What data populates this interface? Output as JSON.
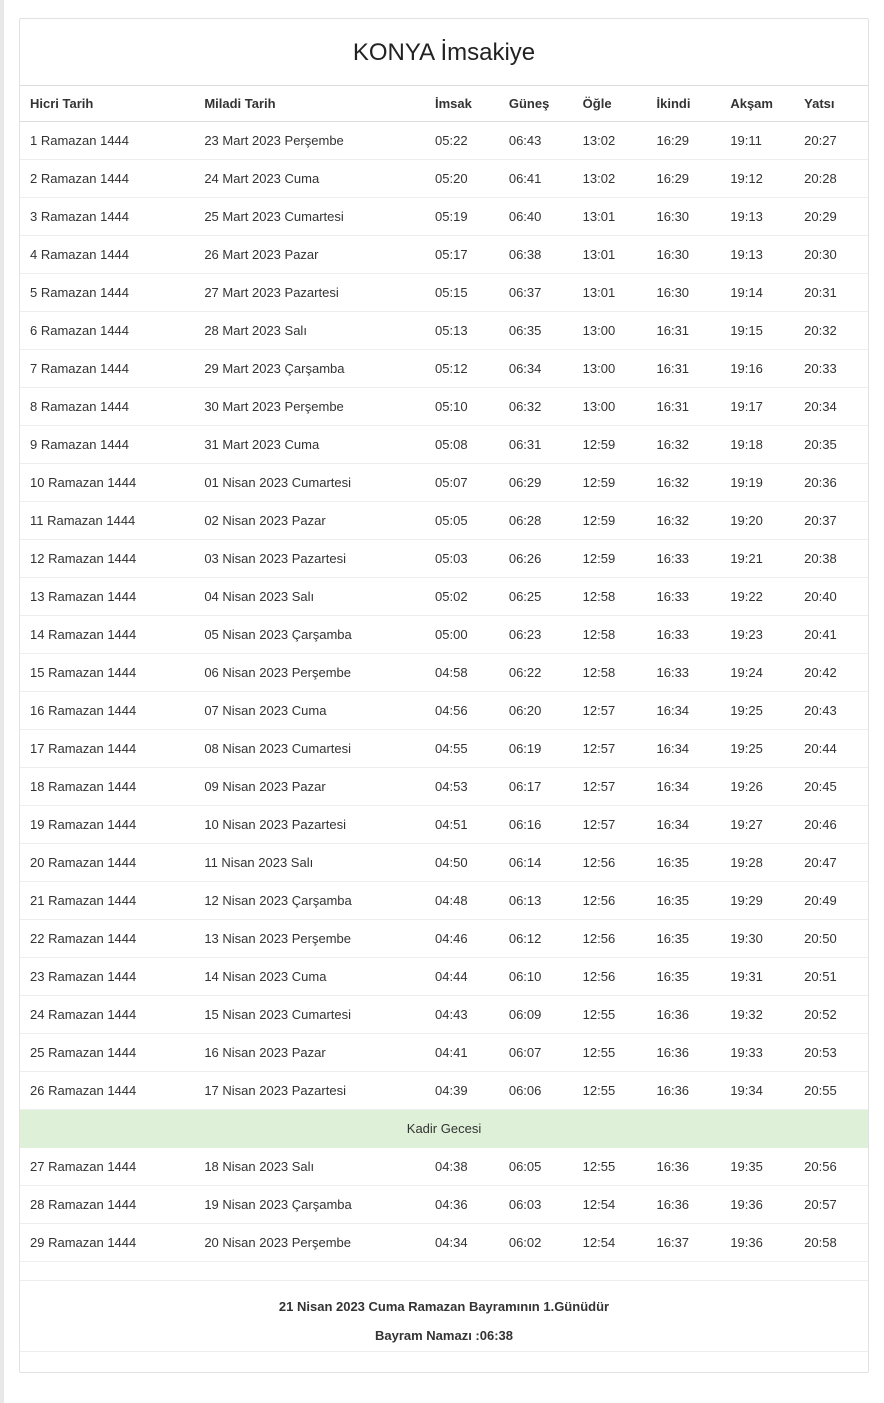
{
  "title": "KONYA İmsakiye",
  "columns": [
    "Hicri Tarih",
    "Miladi Tarih",
    "İmsak",
    "Güneş",
    "Öğle",
    "İkindi",
    "Akşam",
    "Yatsı"
  ],
  "special_row_label": "Kadir Gecesi",
  "special_row_after_index": 25,
  "special_row_bg": "#dff0d8",
  "footer": {
    "line1": "21 Nisan 2023 Cuma Ramazan Bayramının 1.Günüdür",
    "line2": "Bayram Namazı :06:38"
  },
  "rows": [
    {
      "hicri": "1 Ramazan 1444",
      "miladi": "23 Mart 2023 Perşembe",
      "imsak": "05:22",
      "gunes": "06:43",
      "ogle": "13:02",
      "ikindi": "16:29",
      "aksam": "19:11",
      "yatsi": "20:27"
    },
    {
      "hicri": "2 Ramazan 1444",
      "miladi": "24 Mart 2023 Cuma",
      "imsak": "05:20",
      "gunes": "06:41",
      "ogle": "13:02",
      "ikindi": "16:29",
      "aksam": "19:12",
      "yatsi": "20:28"
    },
    {
      "hicri": "3 Ramazan 1444",
      "miladi": "25 Mart 2023 Cumartesi",
      "imsak": "05:19",
      "gunes": "06:40",
      "ogle": "13:01",
      "ikindi": "16:30",
      "aksam": "19:13",
      "yatsi": "20:29"
    },
    {
      "hicri": "4 Ramazan 1444",
      "miladi": "26 Mart 2023 Pazar",
      "imsak": "05:17",
      "gunes": "06:38",
      "ogle": "13:01",
      "ikindi": "16:30",
      "aksam": "19:13",
      "yatsi": "20:30"
    },
    {
      "hicri": "5 Ramazan 1444",
      "miladi": "27 Mart 2023 Pazartesi",
      "imsak": "05:15",
      "gunes": "06:37",
      "ogle": "13:01",
      "ikindi": "16:30",
      "aksam": "19:14",
      "yatsi": "20:31"
    },
    {
      "hicri": "6 Ramazan 1444",
      "miladi": "28 Mart 2023 Salı",
      "imsak": "05:13",
      "gunes": "06:35",
      "ogle": "13:00",
      "ikindi": "16:31",
      "aksam": "19:15",
      "yatsi": "20:32"
    },
    {
      "hicri": "7 Ramazan 1444",
      "miladi": "29 Mart 2023 Çarşamba",
      "imsak": "05:12",
      "gunes": "06:34",
      "ogle": "13:00",
      "ikindi": "16:31",
      "aksam": "19:16",
      "yatsi": "20:33"
    },
    {
      "hicri": "8 Ramazan 1444",
      "miladi": "30 Mart 2023 Perşembe",
      "imsak": "05:10",
      "gunes": "06:32",
      "ogle": "13:00",
      "ikindi": "16:31",
      "aksam": "19:17",
      "yatsi": "20:34"
    },
    {
      "hicri": "9 Ramazan 1444",
      "miladi": "31 Mart 2023 Cuma",
      "imsak": "05:08",
      "gunes": "06:31",
      "ogle": "12:59",
      "ikindi": "16:32",
      "aksam": "19:18",
      "yatsi": "20:35"
    },
    {
      "hicri": "10 Ramazan 1444",
      "miladi": "01 Nisan 2023 Cumartesi",
      "imsak": "05:07",
      "gunes": "06:29",
      "ogle": "12:59",
      "ikindi": "16:32",
      "aksam": "19:19",
      "yatsi": "20:36"
    },
    {
      "hicri": "11 Ramazan 1444",
      "miladi": "02 Nisan 2023 Pazar",
      "imsak": "05:05",
      "gunes": "06:28",
      "ogle": "12:59",
      "ikindi": "16:32",
      "aksam": "19:20",
      "yatsi": "20:37"
    },
    {
      "hicri": "12 Ramazan 1444",
      "miladi": "03 Nisan 2023 Pazartesi",
      "imsak": "05:03",
      "gunes": "06:26",
      "ogle": "12:59",
      "ikindi": "16:33",
      "aksam": "19:21",
      "yatsi": "20:38"
    },
    {
      "hicri": "13 Ramazan 1444",
      "miladi": "04 Nisan 2023 Salı",
      "imsak": "05:02",
      "gunes": "06:25",
      "ogle": "12:58",
      "ikindi": "16:33",
      "aksam": "19:22",
      "yatsi": "20:40"
    },
    {
      "hicri": "14 Ramazan 1444",
      "miladi": "05 Nisan 2023 Çarşamba",
      "imsak": "05:00",
      "gunes": "06:23",
      "ogle": "12:58",
      "ikindi": "16:33",
      "aksam": "19:23",
      "yatsi": "20:41"
    },
    {
      "hicri": "15 Ramazan 1444",
      "miladi": "06 Nisan 2023 Perşembe",
      "imsak": "04:58",
      "gunes": "06:22",
      "ogle": "12:58",
      "ikindi": "16:33",
      "aksam": "19:24",
      "yatsi": "20:42"
    },
    {
      "hicri": "16 Ramazan 1444",
      "miladi": "07 Nisan 2023 Cuma",
      "imsak": "04:56",
      "gunes": "06:20",
      "ogle": "12:57",
      "ikindi": "16:34",
      "aksam": "19:25",
      "yatsi": "20:43"
    },
    {
      "hicri": "17 Ramazan 1444",
      "miladi": "08 Nisan 2023 Cumartesi",
      "imsak": "04:55",
      "gunes": "06:19",
      "ogle": "12:57",
      "ikindi": "16:34",
      "aksam": "19:25",
      "yatsi": "20:44"
    },
    {
      "hicri": "18 Ramazan 1444",
      "miladi": "09 Nisan 2023 Pazar",
      "imsak": "04:53",
      "gunes": "06:17",
      "ogle": "12:57",
      "ikindi": "16:34",
      "aksam": "19:26",
      "yatsi": "20:45"
    },
    {
      "hicri": "19 Ramazan 1444",
      "miladi": "10 Nisan 2023 Pazartesi",
      "imsak": "04:51",
      "gunes": "06:16",
      "ogle": "12:57",
      "ikindi": "16:34",
      "aksam": "19:27",
      "yatsi": "20:46"
    },
    {
      "hicri": "20 Ramazan 1444",
      "miladi": "11 Nisan 2023 Salı",
      "imsak": "04:50",
      "gunes": "06:14",
      "ogle": "12:56",
      "ikindi": "16:35",
      "aksam": "19:28",
      "yatsi": "20:47"
    },
    {
      "hicri": "21 Ramazan 1444",
      "miladi": "12 Nisan 2023 Çarşamba",
      "imsak": "04:48",
      "gunes": "06:13",
      "ogle": "12:56",
      "ikindi": "16:35",
      "aksam": "19:29",
      "yatsi": "20:49"
    },
    {
      "hicri": "22 Ramazan 1444",
      "miladi": "13 Nisan 2023 Perşembe",
      "imsak": "04:46",
      "gunes": "06:12",
      "ogle": "12:56",
      "ikindi": "16:35",
      "aksam": "19:30",
      "yatsi": "20:50"
    },
    {
      "hicri": "23 Ramazan 1444",
      "miladi": "14 Nisan 2023 Cuma",
      "imsak": "04:44",
      "gunes": "06:10",
      "ogle": "12:56",
      "ikindi": "16:35",
      "aksam": "19:31",
      "yatsi": "20:51"
    },
    {
      "hicri": "24 Ramazan 1444",
      "miladi": "15 Nisan 2023 Cumartesi",
      "imsak": "04:43",
      "gunes": "06:09",
      "ogle": "12:55",
      "ikindi": "16:36",
      "aksam": "19:32",
      "yatsi": "20:52"
    },
    {
      "hicri": "25 Ramazan 1444",
      "miladi": "16 Nisan 2023 Pazar",
      "imsak": "04:41",
      "gunes": "06:07",
      "ogle": "12:55",
      "ikindi": "16:36",
      "aksam": "19:33",
      "yatsi": "20:53"
    },
    {
      "hicri": "26 Ramazan 1444",
      "miladi": "17 Nisan 2023 Pazartesi",
      "imsak": "04:39",
      "gunes": "06:06",
      "ogle": "12:55",
      "ikindi": "16:36",
      "aksam": "19:34",
      "yatsi": "20:55"
    },
    {
      "hicri": "27 Ramazan 1444",
      "miladi": "18 Nisan 2023 Salı",
      "imsak": "04:38",
      "gunes": "06:05",
      "ogle": "12:55",
      "ikindi": "16:36",
      "aksam": "19:35",
      "yatsi": "20:56"
    },
    {
      "hicri": "28 Ramazan 1444",
      "miladi": "19 Nisan 2023 Çarşamba",
      "imsak": "04:36",
      "gunes": "06:03",
      "ogle": "12:54",
      "ikindi": "16:36",
      "aksam": "19:36",
      "yatsi": "20:57"
    },
    {
      "hicri": "29 Ramazan 1444",
      "miladi": "20 Nisan 2023 Perşembe",
      "imsak": "04:34",
      "gunes": "06:02",
      "ogle": "12:54",
      "ikindi": "16:37",
      "aksam": "19:36",
      "yatsi": "20:58"
    }
  ]
}
